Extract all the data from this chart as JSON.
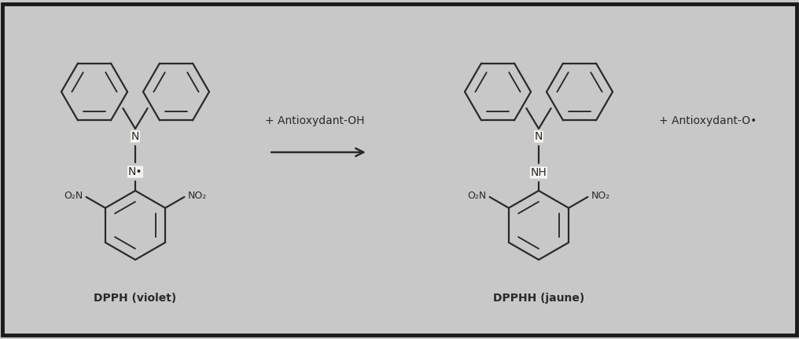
{
  "background_color": "#c8c8c8",
  "inner_background": "#f5f3f0",
  "border_color": "#1a1a1a",
  "line_color": "#2a2a2a",
  "text_color": "#1a1a1a",
  "label_dpph": "DPPH (violet)",
  "label_dpphh": "DPPHH (jaune)",
  "label_antioxydant_oh": "+ Antioxydant-OH",
  "label_antioxydant_o": "+ Antioxydant-O•",
  "figsize": [
    10.16,
    4.32
  ],
  "dpi": 100,
  "lw": 1.6,
  "r_ph": 0.42,
  "r_pic": 0.44
}
